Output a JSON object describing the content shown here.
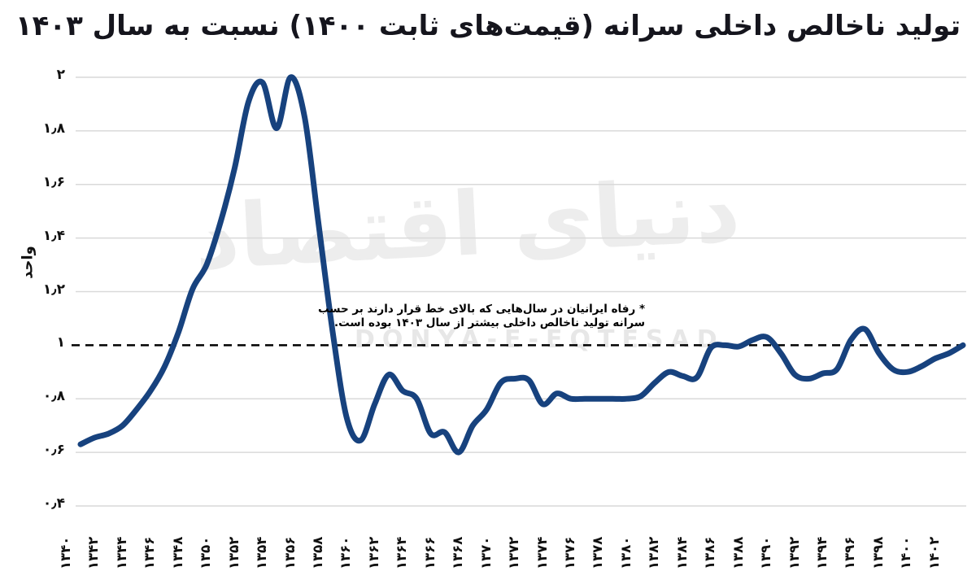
{
  "title": "تولید ناخالص داخلی سرانه (قیمت‌های ثابت ۱۴۰۰) نسبت به سال ۱۴۰۳",
  "annotation": {
    "line1": "* رفاه ایرانیان در سال‌هایی که بالای خط قرار دارند بر حسب",
    "line2": "سرانه تولید ناخالص داخلی بیشتر از سال ۱۴۰۳ بوده است."
  },
  "watermark": {
    "fa": "دنیای اقتصاد",
    "en": "DONYA-E-EQTESAD"
  },
  "colors": {
    "line": "#17427E",
    "grid": "#d9d9d9",
    "baseline": "#000000",
    "text": "#111111",
    "watermark": "#ededed"
  },
  "chart_data": {
    "type": "line",
    "title": "تولید ناخالص داخلی سرانه (قیمت‌های ثابت ۱۴۰۰) نسبت به سال ۱۴۰۳",
    "xlabel": "",
    "ylabel": "واحد",
    "ylim": [
      0.4,
      2.0
    ],
    "xlim": [
      1340,
      1403
    ],
    "grid": "horizontal-light",
    "baseline": 1.0,
    "baseline_style": "black-dashed",
    "legend": "none",
    "ytick_values": [
      2,
      1.8,
      1.6,
      1.4,
      1.2,
      1,
      0.8,
      0.6,
      0.4
    ],
    "ytick_labels": [
      "۲",
      "۱٫۸",
      "۱٫۶",
      "۱٫۴",
      "۱٫۲",
      "۱",
      "۰٫۸",
      "۰٫۶",
      "۰٫۴"
    ],
    "xtick_years": [
      1340,
      1342,
      1344,
      1346,
      1348,
      1350,
      1352,
      1354,
      1356,
      1358,
      1360,
      1362,
      1364,
      1366,
      1368,
      1370,
      1372,
      1374,
      1376,
      1378,
      1380,
      1382,
      1384,
      1386,
      1388,
      1390,
      1392,
      1394,
      1396,
      1398,
      1400,
      1402
    ],
    "xtick_labels": [
      "۱۳۴۰",
      "۱۳۴۲",
      "۱۳۴۴",
      "۱۳۴۶",
      "۱۳۴۸",
      "۱۳۵۰",
      "۱۳۵۲",
      "۱۳۵۴",
      "۱۳۵۶",
      "۱۳۵۸",
      "۱۳۶۰",
      "۱۳۶۲",
      "۱۳۶۴",
      "۱۳۶۶",
      "۱۳۶۸",
      "۱۳۷۰",
      "۱۳۷۲",
      "۱۳۷۴",
      "۱۳۷۶",
      "۱۳۷۸",
      "۱۳۸۰",
      "۱۳۸۲",
      "۱۳۸۴",
      "۱۳۸۶",
      "۱۳۸۸",
      "۱۳۹۰",
      "۱۳۹۲",
      "۱۳۹۴",
      "۱۳۹۶",
      "۱۳۹۸",
      "۱۴۰۰",
      "۱۴۰۲"
    ],
    "x": [
      1340,
      1341,
      1342,
      1343,
      1344,
      1345,
      1346,
      1347,
      1348,
      1349,
      1350,
      1351,
      1352,
      1353,
      1354,
      1355,
      1356,
      1357,
      1358,
      1359,
      1360,
      1361,
      1362,
      1363,
      1364,
      1365,
      1366,
      1367,
      1368,
      1369,
      1370,
      1371,
      1372,
      1373,
      1374,
      1375,
      1376,
      1377,
      1378,
      1379,
      1380,
      1381,
      1382,
      1383,
      1384,
      1385,
      1386,
      1387,
      1388,
      1389,
      1390,
      1391,
      1392,
      1393,
      1394,
      1395,
      1396,
      1397,
      1398,
      1399,
      1400,
      1401,
      1402,
      1403
    ],
    "values": [
      0.63,
      0.655,
      0.67,
      0.7,
      0.76,
      0.83,
      0.92,
      1.05,
      1.21,
      1.3,
      1.46,
      1.66,
      1.91,
      1.98,
      1.81,
      2.0,
      1.85,
      1.45,
      1.05,
      0.73,
      0.645,
      0.78,
      0.89,
      0.83,
      0.8,
      0.67,
      0.675,
      0.6,
      0.7,
      0.76,
      0.86,
      0.875,
      0.87,
      0.78,
      0.82,
      0.8,
      0.8,
      0.8,
      0.8,
      0.8,
      0.81,
      0.86,
      0.9,
      0.885,
      0.88,
      0.99,
      1.0,
      0.995,
      1.02,
      1.03,
      0.97,
      0.89,
      0.875,
      0.895,
      0.91,
      1.02,
      1.06,
      0.97,
      0.91,
      0.9,
      0.92,
      0.95,
      0.97,
      1.0
    ]
  }
}
